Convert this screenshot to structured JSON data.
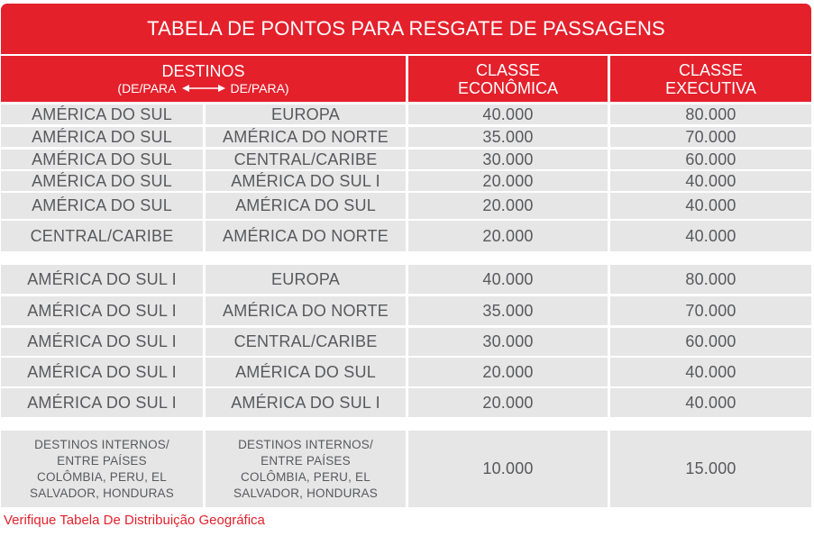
{
  "title": "TABELA DE PONTOS PARA RESGATE DE PASSAGENS",
  "header": {
    "destinos": "DESTINOS",
    "de_para_left": "(DE/PARA",
    "de_para_right": "DE/PARA)",
    "economica_1": "CLASSE",
    "economica_2": "ECONÔMICA",
    "executiva_1": "CLASSE",
    "executiva_2": "EXECUTIVA"
  },
  "groups": [
    {
      "rows": [
        {
          "from": "AMÉRICA DO SUL",
          "to": "EUROPA",
          "economica": "40.000",
          "executiva": "80.000"
        },
        {
          "from": "AMÉRICA DO SUL",
          "to": "AMÉRICA DO NORTE",
          "economica": "35.000",
          "executiva": "70.000"
        },
        {
          "from": "AMÉRICA DO SUL",
          "to": "CENTRAL/CARIBE",
          "economica": "30.000",
          "executiva": "60.000"
        },
        {
          "from": "AMÉRICA DO SUL",
          "to": "AMÉRICA DO SUL I",
          "economica": "20.000",
          "executiva": "40.000"
        },
        {
          "from": "AMÉRICA DO SUL",
          "to": "AMÉRICA DO SUL",
          "economica": "20.000",
          "executiva": "40.000"
        },
        {
          "from": "CENTRAL/CARIBE",
          "to": "AMÉRICA DO NORTE",
          "economica": "20.000",
          "executiva": "40.000"
        }
      ]
    },
    {
      "rows": [
        {
          "from": "AMÉRICA DO SUL I",
          "to": "EUROPA",
          "economica": "40.000",
          "executiva": "80.000"
        },
        {
          "from": "AMÉRICA DO SUL I",
          "to": "AMÉRICA DO NORTE",
          "economica": "35.000",
          "executiva": "70.000"
        },
        {
          "from": "AMÉRICA DO SUL I",
          "to": "CENTRAL/CARIBE",
          "economica": "30.000",
          "executiva": "60.000"
        },
        {
          "from": "AMÉRICA DO SUL I",
          "to": "AMÉRICA DO SUL",
          "economica": "20.000",
          "executiva": "40.000"
        },
        {
          "from": "AMÉRICA DO SUL I",
          "to": "AMÉRICA DO SUL I",
          "economica": "20.000",
          "executiva": "40.000"
        }
      ]
    },
    {
      "rows": [
        {
          "from_lines": [
            "DESTINOS INTERNOS/",
            "ENTRE PAÍSES",
            "COLÔMBIA, PERU, EL",
            "SALVADOR, HONDURAS"
          ],
          "to_lines": [
            "DESTINOS INTERNOS/",
            "ENTRE PAÍSES",
            "COLÔMBIA, PERU, EL",
            "SALVADOR, HONDURAS"
          ],
          "economica": "10.000",
          "executiva": "15.000"
        }
      ]
    }
  ],
  "footnote": "Verifique Tabela De Distribuição Geográfica",
  "colors": {
    "accent": "#e4202b",
    "cell_bg": "#e6e6e7",
    "text": "#58595b"
  },
  "icons": {
    "de_para_arrow": "double-arrow-icon"
  }
}
